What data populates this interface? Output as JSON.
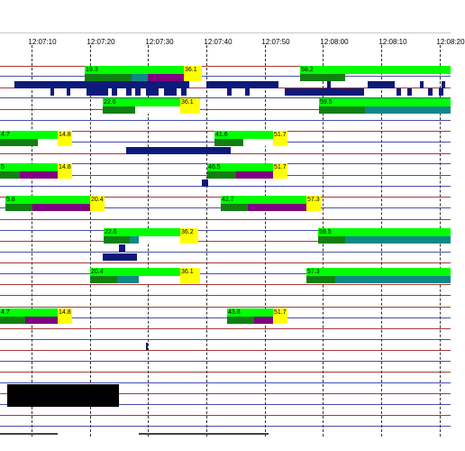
{
  "timeline": {
    "tick_labels": [
      "12:07:10",
      "12:07:20",
      "12:07:30",
      "12:07:40",
      "12:07:50",
      "12:08:00",
      "12:08:10",
      "12:08:20"
    ]
  },
  "colors": {
    "row_line_red": "#a33b3b",
    "row_line_blue": "#4a4fa8",
    "bar_green": "#00ff00",
    "bar_dark_green": "#108010",
    "bar_purple": "#800080",
    "bar_teal": "#118888",
    "bar_yellow": "#ffff00",
    "bar_white": "#ffffff",
    "marker_navy": "#0d1a7a",
    "black": "#000000"
  },
  "bars": [
    {
      "id": "b1",
      "start": "19.3",
      "end": "36.1"
    },
    {
      "id": "b2",
      "start": "58.2",
      "end": ""
    },
    {
      "id": "b3",
      "start": "22.6",
      "end": "36.1"
    },
    {
      "id": "b4",
      "start": "59.5",
      "end": ""
    },
    {
      "id": "b5",
      "start": "4.7",
      "end": "14.8"
    },
    {
      "id": "b6",
      "start": "41.6",
      "end": "51.7"
    },
    {
      "id": "b7",
      "start": "5",
      "end": "14.8"
    },
    {
      "id": "b8",
      "start": "46.5",
      "end": "51.7"
    },
    {
      "id": "b9",
      "start": "5.8",
      "end": "20.4"
    },
    {
      "id": "b10",
      "start": "42.7",
      "end": "57.3"
    },
    {
      "id": "b11",
      "start": "22.6",
      "end": "36.2"
    },
    {
      "id": "b12",
      "start": "59.5",
      "end": ""
    },
    {
      "id": "b13",
      "start": "20.4",
      "end": "36.1"
    },
    {
      "id": "b14",
      "start": "57.3",
      "end": ""
    },
    {
      "id": "b15",
      "start": "4.7",
      "end": "14.8"
    },
    {
      "id": "b16",
      "start": "43.8",
      "end": "51.7"
    }
  ]
}
